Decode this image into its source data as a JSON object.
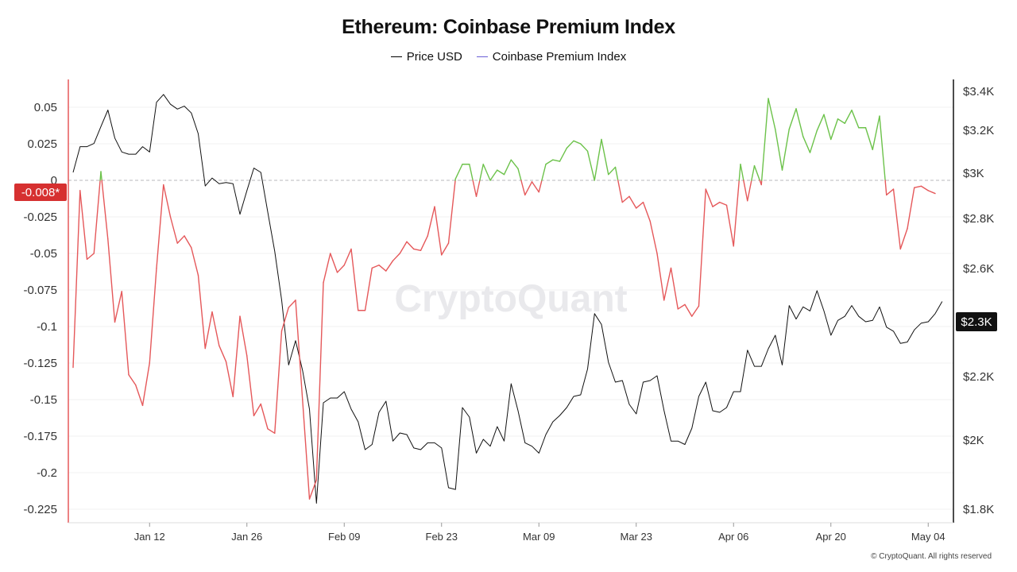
{
  "title": "Ethereum: Coinbase Premium Index",
  "legend": [
    {
      "label": "Price USD",
      "color": "#000000"
    },
    {
      "label": "Coinbase Premium Index",
      "color": "#6b5fd6"
    }
  ],
  "watermark": "CryptoQuant",
  "footer": "© CryptoQuant. All rights reserved",
  "current_value_badge": "-0.008*",
  "current_price_badge": "$2.3K",
  "colors": {
    "price_line": "#111111",
    "premium_negative": "#e5585a",
    "premium_positive": "#6cc24a",
    "badge_red": "#d63030",
    "badge_dark": "#111111",
    "axis_left": "#e5585a"
  },
  "chart_data": {
    "type": "line",
    "title": "Ethereum: Coinbase Premium Index",
    "legend_position": "top-center",
    "grid": true,
    "y_left": {
      "label": "",
      "range": [
        -0.235,
        0.065
      ],
      "ticks": [
        0.05,
        0.025,
        0,
        -0.025,
        -0.05,
        -0.075,
        -0.1,
        -0.125,
        -0.15,
        -0.175,
        -0.2,
        -0.225
      ],
      "tick_labels": [
        "0.05",
        "0.025",
        "0",
        "-0.025",
        "-0.05",
        "-0.075",
        "-0.1",
        "-0.125",
        "-0.15",
        "-0.175",
        "-0.2",
        "-0.225"
      ]
    },
    "y_right": {
      "label": "",
      "range": [
        1750,
        3450
      ],
      "ticks": [
        3400,
        3200,
        3000,
        2800,
        2600,
        2200,
        2000,
        1800
      ],
      "tick_labels": [
        "$3.4K",
        "$3.2K",
        "$3K",
        "$2.8K",
        "$2.6K",
        "$2.2K",
        "$2K",
        "$1.8K"
      ]
    },
    "x_axis": {
      "start": "2025-01-01",
      "end": "2025-05-05",
      "tick_dates": [
        "2025-01-12",
        "2025-01-26",
        "2025-02-09",
        "2025-02-23",
        "2025-03-09",
        "2025-03-23",
        "2025-04-06",
        "2025-04-20",
        "2025-05-04"
      ],
      "tick_labels": [
        "Jan 12",
        "Jan 26",
        "Feb 09",
        "Feb 23",
        "Mar 09",
        "Mar 23",
        "Apr 06",
        "Apr 20",
        "May 04"
      ]
    },
    "series": [
      {
        "name": "Price USD",
        "axis": "right",
        "points": [
          [
            "2025-01-01",
            3000
          ],
          [
            "2025-01-02",
            3120
          ],
          [
            "2025-01-03",
            3120
          ],
          [
            "2025-01-04",
            3135
          ],
          [
            "2025-01-05",
            3215
          ],
          [
            "2025-01-06",
            3300
          ],
          [
            "2025-01-07",
            3160
          ],
          [
            "2025-01-08",
            3095
          ],
          [
            "2025-01-09",
            3085
          ],
          [
            "2025-01-10",
            3085
          ],
          [
            "2025-01-11",
            3120
          ],
          [
            "2025-01-12",
            3095
          ],
          [
            "2025-01-13",
            3340
          ],
          [
            "2025-01-14",
            3380
          ],
          [
            "2025-01-15",
            3330
          ],
          [
            "2025-01-16",
            3305
          ],
          [
            "2025-01-17",
            3320
          ],
          [
            "2025-01-18",
            3285
          ],
          [
            "2025-01-19",
            3180
          ],
          [
            "2025-01-20",
            2940
          ],
          [
            "2025-01-21",
            2975
          ],
          [
            "2025-01-22",
            2950
          ],
          [
            "2025-01-23",
            2955
          ],
          [
            "2025-01-24",
            2950
          ],
          [
            "2025-01-25",
            2815
          ],
          [
            "2025-01-26",
            2920
          ],
          [
            "2025-01-27",
            3020
          ],
          [
            "2025-01-28",
            3000
          ],
          [
            "2025-01-29",
            2825
          ],
          [
            "2025-01-30",
            2665
          ],
          [
            "2025-01-31",
            2480
          ],
          [
            "2025-02-01",
            2240
          ],
          [
            "2025-02-02",
            2330
          ],
          [
            "2025-02-03",
            2220
          ],
          [
            "2025-02-04",
            2095
          ],
          [
            "2025-02-05",
            1815
          ],
          [
            "2025-02-06",
            2115
          ],
          [
            "2025-02-07",
            2130
          ],
          [
            "2025-02-08",
            2130
          ],
          [
            "2025-02-09",
            2150
          ],
          [
            "2025-02-10",
            2095
          ],
          [
            "2025-02-11",
            2055
          ],
          [
            "2025-02-12",
            1970
          ],
          [
            "2025-02-13",
            1985
          ],
          [
            "2025-02-14",
            2085
          ],
          [
            "2025-02-15",
            2120
          ],
          [
            "2025-02-16",
            1995
          ],
          [
            "2025-02-17",
            2020
          ],
          [
            "2025-02-18",
            2015
          ],
          [
            "2025-02-19",
            1975
          ],
          [
            "2025-02-20",
            1970
          ],
          [
            "2025-02-21",
            1990
          ],
          [
            "2025-02-22",
            1990
          ],
          [
            "2025-02-23",
            1975
          ],
          [
            "2025-02-24",
            1860
          ],
          [
            "2025-02-25",
            1855
          ],
          [
            "2025-02-26",
            2100
          ],
          [
            "2025-02-27",
            2070
          ],
          [
            "2025-02-28",
            1960
          ],
          [
            "2025-03-01",
            2000
          ],
          [
            "2025-03-02",
            1980
          ],
          [
            "2025-03-03",
            2040
          ],
          [
            "2025-03-04",
            1995
          ],
          [
            "2025-03-05",
            2175
          ],
          [
            "2025-03-06",
            2090
          ],
          [
            "2025-03-07",
            1990
          ],
          [
            "2025-03-08",
            1980
          ],
          [
            "2025-03-09",
            1960
          ],
          [
            "2025-03-10",
            2015
          ],
          [
            "2025-03-11",
            2055
          ],
          [
            "2025-03-12",
            2075
          ],
          [
            "2025-03-13",
            2100
          ],
          [
            "2025-03-14",
            2135
          ],
          [
            "2025-03-15",
            2140
          ],
          [
            "2025-03-16",
            2225
          ],
          [
            "2025-03-17",
            2430
          ],
          [
            "2025-03-18",
            2390
          ],
          [
            "2025-03-19",
            2250
          ],
          [
            "2025-03-20",
            2180
          ],
          [
            "2025-03-21",
            2185
          ],
          [
            "2025-03-22",
            2110
          ],
          [
            "2025-03-23",
            2080
          ],
          [
            "2025-03-24",
            2180
          ],
          [
            "2025-03-25",
            2185
          ],
          [
            "2025-03-26",
            2200
          ],
          [
            "2025-03-27",
            2090
          ],
          [
            "2025-03-28",
            1995
          ],
          [
            "2025-03-29",
            1995
          ],
          [
            "2025-03-30",
            1985
          ],
          [
            "2025-03-31",
            2035
          ],
          [
            "2025-04-01",
            2135
          ],
          [
            "2025-04-02",
            2180
          ],
          [
            "2025-04-03",
            2090
          ],
          [
            "2025-04-04",
            2085
          ],
          [
            "2025-04-05",
            2100
          ],
          [
            "2025-04-06",
            2150
          ],
          [
            "2025-04-07",
            2150
          ],
          [
            "2025-04-08",
            2295
          ],
          [
            "2025-04-09",
            2235
          ],
          [
            "2025-04-10",
            2235
          ],
          [
            "2025-04-11",
            2300
          ],
          [
            "2025-04-12",
            2350
          ],
          [
            "2025-04-13",
            2240
          ],
          [
            "2025-04-14",
            2460
          ],
          [
            "2025-04-15",
            2410
          ],
          [
            "2025-04-16",
            2455
          ],
          [
            "2025-04-17",
            2440
          ],
          [
            "2025-04-18",
            2515
          ],
          [
            "2025-04-19",
            2440
          ],
          [
            "2025-04-20",
            2350
          ],
          [
            "2025-04-21",
            2405
          ],
          [
            "2025-04-22",
            2420
          ],
          [
            "2025-04-23",
            2460
          ],
          [
            "2025-04-24",
            2420
          ],
          [
            "2025-04-25",
            2400
          ],
          [
            "2025-04-26",
            2405
          ],
          [
            "2025-04-27",
            2455
          ],
          [
            "2025-04-28",
            2380
          ],
          [
            "2025-04-29",
            2365
          ],
          [
            "2025-04-30",
            2320
          ],
          [
            "2025-05-01",
            2325
          ],
          [
            "2025-05-02",
            2370
          ],
          [
            "2025-05-03",
            2395
          ],
          [
            "2025-05-04",
            2400
          ],
          [
            "2025-05-05",
            2430
          ],
          [
            "2025-05-06",
            2475
          ]
        ]
      },
      {
        "name": "Coinbase Premium Index",
        "axis": "left",
        "points": [
          [
            "2025-01-01",
            -0.128
          ],
          [
            "2025-01-02",
            -0.007
          ],
          [
            "2025-01-03",
            -0.054
          ],
          [
            "2025-01-04",
            -0.05
          ],
          [
            "2025-01-05",
            0.006
          ],
          [
            "2025-01-06",
            -0.04
          ],
          [
            "2025-01-07",
            -0.097
          ],
          [
            "2025-01-08",
            -0.076
          ],
          [
            "2025-01-09",
            -0.133
          ],
          [
            "2025-01-10",
            -0.14
          ],
          [
            "2025-01-11",
            -0.154
          ],
          [
            "2025-01-12",
            -0.125
          ],
          [
            "2025-01-13",
            -0.06
          ],
          [
            "2025-01-14",
            -0.003
          ],
          [
            "2025-01-15",
            -0.025
          ],
          [
            "2025-01-16",
            -0.043
          ],
          [
            "2025-01-17",
            -0.038
          ],
          [
            "2025-01-18",
            -0.046
          ],
          [
            "2025-01-19",
            -0.065
          ],
          [
            "2025-01-20",
            -0.115
          ],
          [
            "2025-01-21",
            -0.09
          ],
          [
            "2025-01-22",
            -0.113
          ],
          [
            "2025-01-23",
            -0.124
          ],
          [
            "2025-01-24",
            -0.148
          ],
          [
            "2025-01-25",
            -0.093
          ],
          [
            "2025-01-26",
            -0.12
          ],
          [
            "2025-01-27",
            -0.161
          ],
          [
            "2025-01-28",
            -0.153
          ],
          [
            "2025-01-29",
            -0.17
          ],
          [
            "2025-01-30",
            -0.173
          ],
          [
            "2025-01-31",
            -0.103
          ],
          [
            "2025-02-01",
            -0.087
          ],
          [
            "2025-02-02",
            -0.082
          ],
          [
            "2025-02-03",
            -0.15
          ],
          [
            "2025-02-04",
            -0.218
          ],
          [
            "2025-02-05",
            -0.205
          ],
          [
            "2025-02-06",
            -0.07
          ],
          [
            "2025-02-07",
            -0.05
          ],
          [
            "2025-02-08",
            -0.063
          ],
          [
            "2025-02-09",
            -0.058
          ],
          [
            "2025-02-10",
            -0.047
          ],
          [
            "2025-02-11",
            -0.089
          ],
          [
            "2025-02-12",
            -0.089
          ],
          [
            "2025-02-13",
            -0.06
          ],
          [
            "2025-02-14",
            -0.058
          ],
          [
            "2025-02-15",
            -0.062
          ],
          [
            "2025-02-16",
            -0.055
          ],
          [
            "2025-02-17",
            -0.05
          ],
          [
            "2025-02-18",
            -0.042
          ],
          [
            "2025-02-19",
            -0.047
          ],
          [
            "2025-02-20",
            -0.048
          ],
          [
            "2025-02-21",
            -0.038
          ],
          [
            "2025-02-22",
            -0.018
          ],
          [
            "2025-02-23",
            -0.051
          ],
          [
            "2025-02-24",
            -0.043
          ],
          [
            "2025-02-25",
            0.001
          ],
          [
            "2025-02-26",
            0.011
          ],
          [
            "2025-02-27",
            0.011
          ],
          [
            "2025-02-28",
            -0.011
          ],
          [
            "2025-03-01",
            0.011
          ],
          [
            "2025-03-02",
            0.0
          ],
          [
            "2025-03-03",
            0.007
          ],
          [
            "2025-03-04",
            0.004
          ],
          [
            "2025-03-05",
            0.014
          ],
          [
            "2025-03-06",
            0.008
          ],
          [
            "2025-03-07",
            -0.01
          ],
          [
            "2025-03-08",
            -0.001
          ],
          [
            "2025-03-09",
            -0.008
          ],
          [
            "2025-03-10",
            0.011
          ],
          [
            "2025-03-11",
            0.014
          ],
          [
            "2025-03-12",
            0.013
          ],
          [
            "2025-03-13",
            0.022
          ],
          [
            "2025-03-14",
            0.027
          ],
          [
            "2025-03-15",
            0.025
          ],
          [
            "2025-03-16",
            0.02
          ],
          [
            "2025-03-17",
            0.0
          ],
          [
            "2025-03-18",
            0.028
          ],
          [
            "2025-03-19",
            0.004
          ],
          [
            "2025-03-20",
            0.009
          ],
          [
            "2025-03-21",
            -0.015
          ],
          [
            "2025-03-22",
            -0.011
          ],
          [
            "2025-03-23",
            -0.019
          ],
          [
            "2025-03-24",
            -0.015
          ],
          [
            "2025-03-25",
            -0.028
          ],
          [
            "2025-03-26",
            -0.05
          ],
          [
            "2025-03-27",
            -0.082
          ],
          [
            "2025-03-28",
            -0.06
          ],
          [
            "2025-03-29",
            -0.088
          ],
          [
            "2025-03-30",
            -0.085
          ],
          [
            "2025-03-31",
            -0.093
          ],
          [
            "2025-04-01",
            -0.086
          ],
          [
            "2025-04-02",
            -0.006
          ],
          [
            "2025-04-03",
            -0.018
          ],
          [
            "2025-04-04",
            -0.015
          ],
          [
            "2025-04-05",
            -0.017
          ],
          [
            "2025-04-06",
            -0.045
          ],
          [
            "2025-04-07",
            0.011
          ],
          [
            "2025-04-08",
            -0.014
          ],
          [
            "2025-04-09",
            0.01
          ],
          [
            "2025-04-10",
            -0.003
          ],
          [
            "2025-04-11",
            0.056
          ],
          [
            "2025-04-12",
            0.035
          ],
          [
            "2025-04-13",
            0.007
          ],
          [
            "2025-04-14",
            0.035
          ],
          [
            "2025-04-15",
            0.049
          ],
          [
            "2025-04-16",
            0.03
          ],
          [
            "2025-04-17",
            0.019
          ],
          [
            "2025-04-18",
            0.034
          ],
          [
            "2025-04-19",
            0.045
          ],
          [
            "2025-04-20",
            0.028
          ],
          [
            "2025-04-21",
            0.042
          ],
          [
            "2025-04-22",
            0.039
          ],
          [
            "2025-04-23",
            0.048
          ],
          [
            "2025-04-24",
            0.036
          ],
          [
            "2025-04-25",
            0.036
          ],
          [
            "2025-04-26",
            0.021
          ],
          [
            "2025-04-27",
            0.044
          ],
          [
            "2025-04-28",
            -0.01
          ],
          [
            "2025-04-29",
            -0.006
          ],
          [
            "2025-04-30",
            -0.047
          ],
          [
            "2025-05-01",
            -0.033
          ],
          [
            "2025-05-02",
            -0.005
          ],
          [
            "2025-05-03",
            -0.004
          ],
          [
            "2025-05-04",
            -0.007
          ],
          [
            "2025-05-05",
            -0.009
          ]
        ]
      }
    ]
  }
}
